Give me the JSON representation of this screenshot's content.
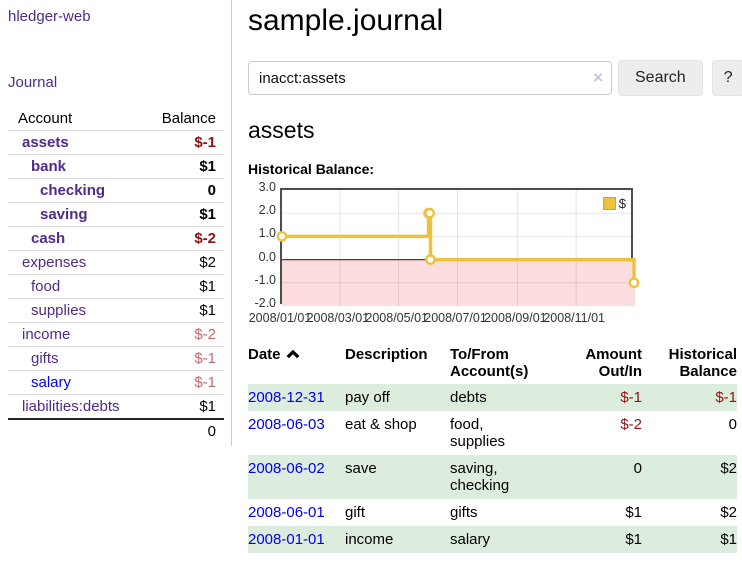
{
  "colors": {
    "accent_purple": "#4f2b8a",
    "link_blue": "#0000ee",
    "negative_strong": "#8b1515",
    "negative_soft": "#c06a6a",
    "row_green": "#dcedde",
    "chart_line_gold": "#edc240",
    "chart_negative_region": "#fcdede",
    "chart_zero_line": "#9b1c1c"
  },
  "sidebar": {
    "brand": "hledger-web",
    "journal_link": "Journal",
    "accounts_table": {
      "headers": {
        "account": "Account",
        "balance": "Balance"
      },
      "rows": [
        {
          "name": "assets",
          "indent": 0,
          "bold": true,
          "blue": false,
          "balance": "$-1",
          "balance_style": "neg-strong"
        },
        {
          "name": "bank",
          "indent": 1,
          "bold": true,
          "blue": false,
          "balance": "$1",
          "balance_style": "pos"
        },
        {
          "name": "checking",
          "indent": 2,
          "bold": true,
          "blue": false,
          "balance": "0",
          "balance_style": "pos"
        },
        {
          "name": "saving",
          "indent": 2,
          "bold": true,
          "blue": false,
          "balance": "$1",
          "balance_style": "pos"
        },
        {
          "name": "cash",
          "indent": 1,
          "bold": true,
          "blue": false,
          "balance": "$-2",
          "balance_style": "neg-strong"
        },
        {
          "name": "expenses",
          "indent": 0,
          "bold": false,
          "blue": false,
          "balance": "$2",
          "balance_style": "pos"
        },
        {
          "name": "food",
          "indent": 1,
          "bold": false,
          "blue": false,
          "balance": "$1",
          "balance_style": "pos"
        },
        {
          "name": "supplies",
          "indent": 1,
          "bold": false,
          "blue": false,
          "balance": "$1",
          "balance_style": "pos"
        },
        {
          "name": "income",
          "indent": 0,
          "bold": false,
          "blue": false,
          "balance": "$-2",
          "balance_style": "neg-soft"
        },
        {
          "name": "gifts",
          "indent": 1,
          "bold": false,
          "blue": false,
          "balance": "$-1",
          "balance_style": "neg-soft"
        },
        {
          "name": "salary",
          "indent": 1,
          "bold": false,
          "blue": true,
          "balance": "$-1",
          "balance_style": "neg-soft"
        },
        {
          "name": "liabilities:debts",
          "indent": 0,
          "bold": false,
          "blue": false,
          "balance": "$1",
          "balance_style": "pos"
        }
      ],
      "total": "0"
    }
  },
  "main": {
    "title": "sample.journal",
    "search": {
      "value": "inacct:assets",
      "clear_icon": "×",
      "button_label": "Search",
      "help_label": "?"
    },
    "account_heading": "assets",
    "chart_label": "Historical Balance:"
  },
  "chart_data": {
    "type": "line",
    "title": "Historical Balance",
    "step": true,
    "series": [
      {
        "name": "$",
        "color": "#edc240",
        "points": [
          [
            "2008-01-01",
            1
          ],
          [
            "2008-06-01",
            2
          ],
          [
            "2008-06-02",
            2
          ],
          [
            "2008-06-03",
            0
          ],
          [
            "2008-12-31",
            -1
          ]
        ]
      }
    ],
    "x_range": [
      "2008-01-01",
      "2009-01-01"
    ],
    "x_ticks": [
      "2008/01/01",
      "2008/03/01",
      "2008/05/01",
      "2008/07/01",
      "2008/09/01",
      "2008/11/01"
    ],
    "y_ticks": [
      3.0,
      2.0,
      1.0,
      0.0,
      -1.0,
      -2.0
    ],
    "ylim": [
      -2,
      3
    ],
    "grid": true,
    "legend": {
      "label": "$",
      "position": "top-right"
    },
    "negative_region_below": 0
  },
  "register": {
    "headers": {
      "date": "Date",
      "description": "Description",
      "accounts": "To/From Account(s)",
      "amount": "Amount Out/In",
      "balance": "Historical Balance"
    },
    "rows": [
      {
        "date": "2008-12-31",
        "description": "pay off",
        "accounts": "debts",
        "amount": "$-1",
        "amount_neg": true,
        "balance": "$-1",
        "balance_neg": true,
        "shaded": true
      },
      {
        "date": "2008-06-03",
        "description": "eat & shop",
        "accounts": "food, supplies",
        "amount": "$-2",
        "amount_neg": true,
        "balance": "0",
        "balance_neg": false,
        "shaded": false
      },
      {
        "date": "2008-06-02",
        "description": "save",
        "accounts": "saving, checking",
        "amount": "0",
        "amount_neg": false,
        "balance": "$2",
        "balance_neg": false,
        "shaded": true
      },
      {
        "date": "2008-06-01",
        "description": "gift",
        "accounts": "gifts",
        "amount": "$1",
        "amount_neg": false,
        "balance": "$2",
        "balance_neg": false,
        "shaded": false
      },
      {
        "date": "2008-01-01",
        "description": "income",
        "accounts": "salary",
        "amount": "$1",
        "amount_neg": false,
        "balance": "$1",
        "balance_neg": false,
        "shaded": true
      }
    ]
  }
}
